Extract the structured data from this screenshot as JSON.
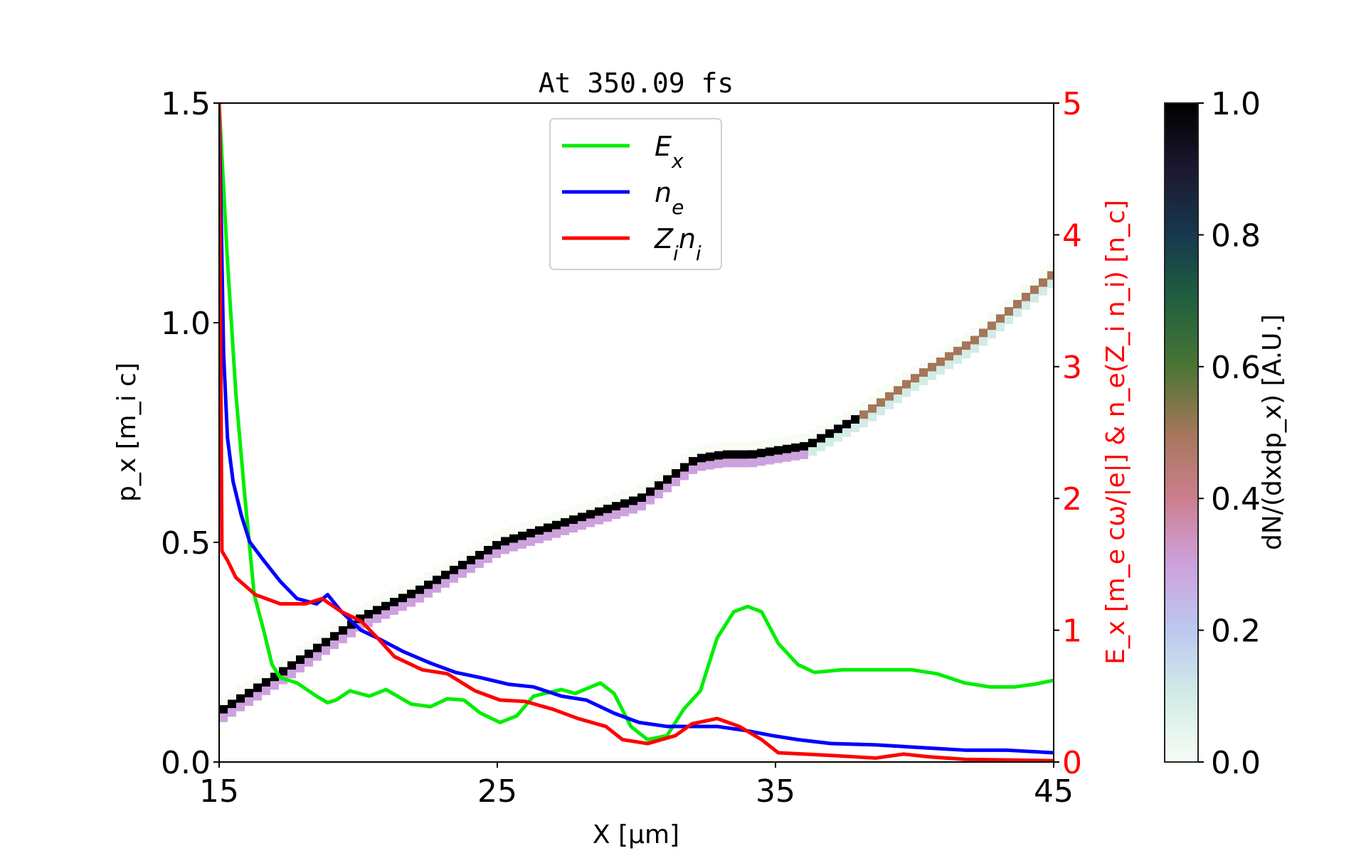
{
  "chart_data": {
    "type": "line",
    "title": "At 350.09 fs",
    "xlabel": "X [μm]",
    "ylabel": "p_x [m_i c]",
    "y2label": "E_x [m_e cω/|e|] & n_e(Z_i n_i) [n_c]",
    "colorbar_label": "dN/(dxdp_x) [A.U.]",
    "xlim": [
      15,
      45
    ],
    "ylim": [
      0,
      1.5
    ],
    "y2lim": [
      0,
      5
    ],
    "colorbar_lim": [
      0,
      1
    ],
    "xticks": [
      "15",
      "25",
      "35",
      "45"
    ],
    "yticks": [
      "0.0",
      "0.5",
      "1.0",
      "1.5"
    ],
    "y2ticks": [
      "0",
      "1",
      "2",
      "3",
      "4",
      "5"
    ],
    "colorbar_ticks": [
      "0.0",
      "0.2",
      "0.4",
      "0.6",
      "0.8",
      "1.0"
    ],
    "y2_color": "#ff0000",
    "legend_position": "top-center",
    "phase_space_ridge": {
      "x": [
        15,
        17,
        20,
        22,
        25,
        27,
        28,
        30,
        32,
        33,
        34,
        36,
        38,
        40,
        42,
        45
      ],
      "px": [
        0.12,
        0.2,
        0.33,
        0.39,
        0.5,
        0.54,
        0.56,
        0.6,
        0.69,
        0.7,
        0.7,
        0.72,
        0.79,
        0.88,
        0.96,
        1.12
      ]
    },
    "series": [
      {
        "name": "E_x",
        "axis": "right",
        "color": "#00ee00",
        "x": [
          15,
          15.3,
          15.6,
          15.9,
          16.26,
          16.6,
          16.9,
          17.2,
          17.8,
          18.5,
          18.9,
          19.2,
          19.7,
          20.4,
          21,
          21.9,
          22.6,
          23.2,
          23.8,
          24.4,
          25.1,
          25.7,
          26.3,
          27.3,
          27.8,
          28.7,
          29.2,
          29.8,
          30.4,
          31.1,
          31.7,
          32.3,
          32.9,
          33.5,
          34.0,
          34.5,
          35.1,
          35.8,
          36.4,
          37.4,
          38.3,
          39.9,
          40.8,
          41.8,
          42.7,
          43.6,
          44.3,
          45
        ],
        "y": [
          5,
          3.8,
          2.8,
          2.07,
          1.27,
          1.0,
          0.74,
          0.64,
          0.6,
          0.5,
          0.45,
          0.47,
          0.54,
          0.5,
          0.55,
          0.44,
          0.42,
          0.48,
          0.47,
          0.37,
          0.3,
          0.35,
          0.5,
          0.55,
          0.52,
          0.6,
          0.52,
          0.27,
          0.17,
          0.2,
          0.4,
          0.54,
          0.94,
          1.14,
          1.18,
          1.14,
          0.9,
          0.74,
          0.68,
          0.7,
          0.7,
          0.7,
          0.67,
          0.6,
          0.57,
          0.57,
          0.59,
          0.62
        ]
      },
      {
        "name": "n_e",
        "axis": "right",
        "color": "#0000ff",
        "x": [
          15,
          15.16,
          15.3,
          15.5,
          15.8,
          16.1,
          16.6,
          17.2,
          17.8,
          18.5,
          18.9,
          19.4,
          20.1,
          20.7,
          21.6,
          22.6,
          23.5,
          24.4,
          25.4,
          26.3,
          27.3,
          28.2,
          29.2,
          30.1,
          31.1,
          32,
          32.9,
          33.9,
          34.9,
          35.8,
          37,
          38.6,
          40.2,
          41.8,
          43.3,
          45
        ],
        "y": [
          5,
          3.1,
          2.46,
          2.13,
          1.87,
          1.67,
          1.53,
          1.37,
          1.24,
          1.2,
          1.27,
          1.14,
          1.0,
          0.94,
          0.84,
          0.75,
          0.68,
          0.64,
          0.59,
          0.57,
          0.5,
          0.47,
          0.37,
          0.3,
          0.27,
          0.27,
          0.27,
          0.24,
          0.2,
          0.17,
          0.14,
          0.13,
          0.11,
          0.09,
          0.09,
          0.07
        ]
      },
      {
        "name": "Z_i n_i",
        "axis": "right",
        "color": "#ff0000",
        "x": [
          15,
          15.1,
          15.3,
          15.6,
          16.3,
          17.2,
          18.1,
          18.7,
          19.4,
          20.1,
          20.7,
          21.3,
          22.3,
          23.2,
          24.2,
          25.1,
          26,
          27,
          27.9,
          28.9,
          29.5,
          30.4,
          31.4,
          32,
          32.9,
          33.7,
          34.5,
          35.1,
          37,
          38.6,
          39.6,
          40.5,
          41.8,
          45
        ],
        "y": [
          5,
          1.6,
          1.53,
          1.4,
          1.27,
          1.2,
          1.2,
          1.24,
          1.14,
          1.07,
          0.94,
          0.8,
          0.7,
          0.67,
          0.54,
          0.47,
          0.46,
          0.4,
          0.33,
          0.27,
          0.17,
          0.14,
          0.2,
          0.29,
          0.33,
          0.27,
          0.17,
          0.07,
          0.05,
          0.03,
          0.06,
          0.04,
          0.02,
          0.01
        ]
      }
    ],
    "legend": [
      {
        "base": "E",
        "sub": "x"
      },
      {
        "base": "n",
        "sub": "e"
      },
      {
        "base": "Z",
        "sub": "i",
        "base2": "n",
        "sub2": "i"
      }
    ]
  }
}
